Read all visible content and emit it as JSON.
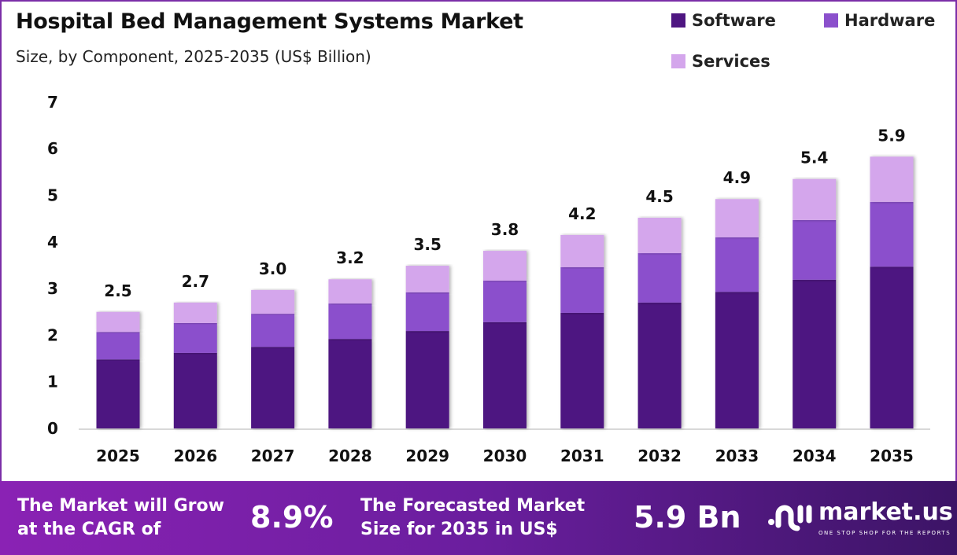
{
  "header": {
    "title": "Hospital Bed Management Systems Market",
    "subtitle": "Size, by Component, 2025-2035 (US$ Billion)"
  },
  "chart_data": {
    "type": "bar",
    "stacked": true,
    "title": "Hospital Bed Management Systems Market",
    "subtitle": "Size, by Component, 2025-2035 (US$ Billion)",
    "categories": [
      "2025",
      "2026",
      "2027",
      "2028",
      "2029",
      "2030",
      "2031",
      "2032",
      "2033",
      "2034",
      "2035"
    ],
    "series": [
      {
        "name": "Software",
        "color": "#4e1681",
        "values": [
          1.48,
          1.62,
          1.75,
          1.92,
          2.09,
          2.28,
          2.48,
          2.7,
          2.93,
          3.19,
          3.47
        ]
      },
      {
        "name": "Hardware",
        "color": "#8b50cc",
        "values": [
          0.59,
          0.64,
          0.71,
          0.76,
          0.83,
          0.89,
          0.98,
          1.06,
          1.17,
          1.28,
          1.39
        ]
      },
      {
        "name": "Services",
        "color": "#d4a6ec",
        "values": [
          0.43,
          0.44,
          0.51,
          0.52,
          0.57,
          0.64,
          0.69,
          0.76,
          0.82,
          0.88,
          0.97
        ]
      }
    ],
    "totals": [
      "2.5",
      "2.7",
      "3.0",
      "3.2",
      "3.5",
      "3.8",
      "4.2",
      "4.5",
      "4.9",
      "5.4",
      "5.9"
    ],
    "yticks": [
      "0",
      "1",
      "2",
      "3",
      "4",
      "5",
      "6",
      "7"
    ],
    "ylim": [
      0,
      7
    ],
    "xlabel": "",
    "ylabel": "",
    "grid": false,
    "legend_position": "top-right"
  },
  "banner": {
    "cagr_label": [
      "The Market will Grow",
      "at the CAGR of"
    ],
    "cagr_value": "8.9%",
    "forecast_label": [
      "The Forecasted Market",
      "Size for 2035 in US$"
    ],
    "forecast_value": "5.9 Bn",
    "logo_name": "market.us",
    "logo_tagline": "ONE STOP SHOP FOR THE REPORTS"
  }
}
